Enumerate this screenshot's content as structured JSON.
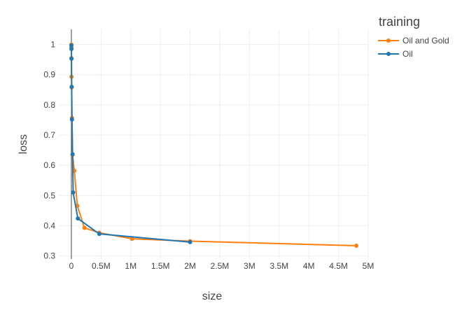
{
  "chart_data": {
    "type": "line",
    "xlabel": "size",
    "ylabel": "loss",
    "xlim": [
      -200000,
      5000000
    ],
    "ylim": [
      0.29,
      1.05
    ],
    "x_ticks": [
      0,
      500000,
      1000000,
      1500000,
      2000000,
      2500000,
      3000000,
      3500000,
      4000000,
      4500000,
      5000000
    ],
    "x_tick_labels": [
      "0",
      "0.5M",
      "1M",
      "1.5M",
      "2M",
      "2.5M",
      "3M",
      "3.5M",
      "4M",
      "4.5M",
      "5M"
    ],
    "y_ticks": [
      0.3,
      0.4,
      0.5,
      0.6,
      0.7,
      0.8,
      0.9,
      1.0
    ],
    "y_tick_labels": [
      "0.3",
      "0.4",
      "0.5",
      "0.6",
      "0.7",
      "0.8",
      "0.9",
      "1"
    ],
    "grid": true,
    "legend": {
      "title": "training",
      "position": "top-right"
    },
    "series": [
      {
        "name": "Oil and Gold",
        "color": "#ff7f0e",
        "x": [
          100,
          500,
          1000,
          2000,
          5000,
          10000,
          20000,
          50000,
          100000,
          220000,
          470000,
          1020000,
          2000000,
          4800000
        ],
        "y": [
          1.0,
          0.99,
          0.955,
          0.893,
          0.858,
          0.757,
          0.635,
          0.582,
          0.466,
          0.393,
          0.377,
          0.357,
          0.349,
          0.334
        ]
      },
      {
        "name": "Oil",
        "color": "#1f77b4",
        "x": [
          100,
          1000,
          2000,
          5000,
          10000,
          20000,
          30000,
          110000,
          470000,
          2000000
        ],
        "y": [
          0.997,
          0.985,
          0.953,
          0.86,
          0.752,
          0.637,
          0.51,
          0.424,
          0.373,
          0.346
        ]
      }
    ]
  }
}
